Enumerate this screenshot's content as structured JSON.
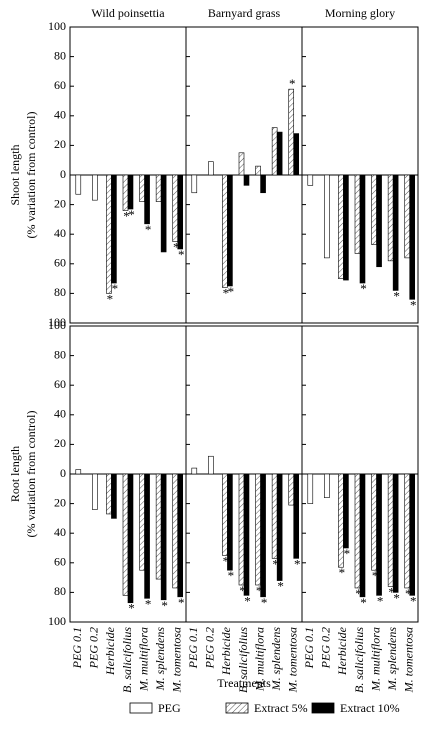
{
  "chart_data": {
    "type": "bar",
    "categories": [
      "PEG 0.1",
      "PEG 0.2",
      "Herbicide",
      "B. salicifolius",
      "M. multiflora",
      "M. splendens",
      "M. tomentosa"
    ],
    "xlabel": "Treatments",
    "columns": [
      "Wild poinsettia",
      "Barnyard grass",
      "Morning glory"
    ],
    "ylim": [
      -100,
      100
    ],
    "yticks": [
      100,
      80,
      60,
      40,
      20,
      0,
      {
        "value": -20,
        "label": "20"
      },
      {
        "value": -40,
        "label": "40"
      },
      {
        "value": -60,
        "label": "60"
      },
      {
        "value": -80,
        "label": "80"
      },
      {
        "value": -100,
        "label": "100"
      }
    ],
    "legend": [
      {
        "name": "PEG",
        "color": "#ffffff",
        "pattern": "none"
      },
      {
        "name": "Extract 5%",
        "color": "#ffffff",
        "pattern": "hatch"
      },
      {
        "name": "Extract 10%",
        "color": "#000000",
        "pattern": "none"
      }
    ],
    "legend_position": "bottom",
    "rows": [
      {
        "ylabel": [
          "Shoot length",
          "(% variation from control)"
        ],
        "panels": [
          {
            "series": [
              {
                "values": [
                  -13,
                  -17,
                  null,
                  null,
                  null,
                  null,
                  null
                ],
                "annotations": [
                  null,
                  null,
                  null,
                  null,
                  null,
                  null,
                  null
                ]
              },
              {
                "values": [
                  null,
                  null,
                  -80,
                  -24,
                  -18,
                  -18,
                  -45
                ],
                "annotations": [
                  null,
                  null,
                  "*",
                  "*",
                  null,
                  null,
                  "*"
                ]
              },
              {
                "values": [
                  null,
                  null,
                  -73,
                  -23,
                  -33,
                  -52,
                  -50
                ],
                "annotations": [
                  null,
                  null,
                  "*",
                  "*",
                  "*",
                  null,
                  "*"
                ]
              }
            ]
          },
          {
            "series": [
              {
                "values": [
                  -12,
                  9,
                  null,
                  null,
                  null,
                  null,
                  null
                ],
                "annotations": [
                  null,
                  null,
                  null,
                  null,
                  null,
                  null,
                  null
                ]
              },
              {
                "values": [
                  null,
                  null,
                  -76,
                  15,
                  6,
                  32,
                  58
                ],
                "annotations": [
                  null,
                  null,
                  "*",
                  null,
                  null,
                  null,
                  "*"
                ]
              },
              {
                "values": [
                  null,
                  null,
                  -75,
                  -7,
                  -12,
                  29,
                  28
                ],
                "annotations": [
                  null,
                  null,
                  "*",
                  null,
                  null,
                  null,
                  null
                ]
              }
            ]
          },
          {
            "series": [
              {
                "values": [
                  -7,
                  -56,
                  null,
                  null,
                  null,
                  null,
                  null
                ],
                "annotations": [
                  null,
                  null,
                  null,
                  null,
                  null,
                  null,
                  null
                ]
              },
              {
                "values": [
                  null,
                  null,
                  -70,
                  -53,
                  -47,
                  -58,
                  -56
                ],
                "annotations": [
                  null,
                  null,
                  null,
                  null,
                  null,
                  null,
                  null
                ]
              },
              {
                "values": [
                  null,
                  null,
                  -71,
                  -73,
                  -62,
                  -78,
                  -84
                ],
                "annotations": [
                  null,
                  null,
                  null,
                  "*",
                  null,
                  "*",
                  "*"
                ]
              }
            ]
          }
        ]
      },
      {
        "ylabel": [
          "Root length",
          "(% variation from control)"
        ],
        "panels": [
          {
            "series": [
              {
                "values": [
                  3,
                  -24,
                  null,
                  null,
                  null,
                  null,
                  null
                ],
                "annotations": [
                  null,
                  null,
                  null,
                  null,
                  null,
                  null,
                  null
                ]
              },
              {
                "values": [
                  null,
                  null,
                  -27,
                  -82,
                  -65,
                  -71,
                  -77
                ],
                "annotations": [
                  null,
                  null,
                  null,
                  null,
                  null,
                  null,
                  null
                ]
              },
              {
                "values": [
                  null,
                  null,
                  -30,
                  -87,
                  -84,
                  -85,
                  -83
                ],
                "annotations": [
                  null,
                  null,
                  null,
                  "*",
                  "*",
                  "*",
                  "*"
                ]
              }
            ]
          },
          {
            "series": [
              {
                "values": [
                  4,
                  12,
                  null,
                  null,
                  null,
                  null,
                  null
                ],
                "annotations": [
                  null,
                  null,
                  null,
                  null,
                  null,
                  null,
                  null
                ]
              },
              {
                "values": [
                  null,
                  null,
                  -55,
                  -75,
                  -75,
                  -57,
                  -21
                ],
                "annotations": [
                  null,
                  null,
                  "*",
                  "*",
                  "*",
                  "*",
                  null
                ]
              },
              {
                "values": [
                  null,
                  null,
                  -65,
                  -82,
                  -83,
                  -72,
                  -57
                ],
                "annotations": [
                  null,
                  null,
                  "*",
                  "*",
                  "*",
                  "*",
                  "*"
                ]
              }
            ]
          },
          {
            "series": [
              {
                "values": [
                  -20,
                  -16,
                  null,
                  null,
                  null,
                  null,
                  null
                ],
                "annotations": [
                  null,
                  null,
                  null,
                  null,
                  null,
                  null,
                  null
                ]
              },
              {
                "values": [
                  null,
                  null,
                  -63,
                  -77,
                  -65,
                  -76,
                  -77
                ],
                "annotations": [
                  null,
                  null,
                  "*",
                  "*",
                  "*",
                  "*",
                  "*"
                ]
              },
              {
                "values": [
                  null,
                  null,
                  -50,
                  -83,
                  -82,
                  -80,
                  -82
                ],
                "annotations": [
                  null,
                  null,
                  "*",
                  "*",
                  "*",
                  "*",
                  "*"
                ]
              }
            ]
          }
        ]
      }
    ]
  }
}
